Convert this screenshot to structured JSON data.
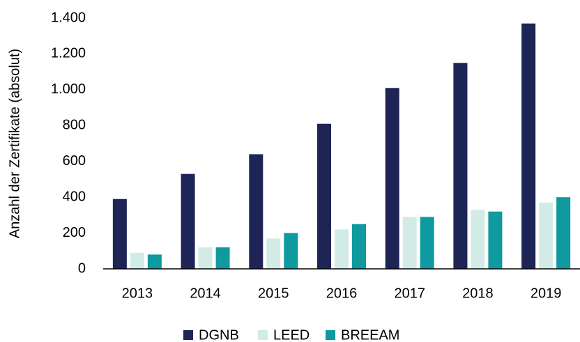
{
  "chart_data": {
    "type": "bar",
    "y_label": "Anzahl der Zertifikate (absolut)",
    "categories": [
      "2013",
      "2014",
      "2015",
      "2016",
      "2017",
      "2018",
      "2019"
    ],
    "series": [
      {
        "name": "DGNB",
        "color": "#1f2456",
        "values": [
          390,
          530,
          640,
          810,
          1010,
          1150,
          1370
        ]
      },
      {
        "name": "LEED",
        "color": "#d3ebe6",
        "values": [
          90,
          120,
          170,
          220,
          290,
          330,
          370
        ]
      },
      {
        "name": "BREEAM",
        "color": "#0e9a9e",
        "values": [
          80,
          120,
          200,
          250,
          290,
          320,
          400
        ]
      }
    ],
    "ylim": [
      0,
      1400
    ],
    "yticks": [
      0,
      200,
      400,
      600,
      800,
      {
        "value": 1000,
        "label": "1.000"
      },
      {
        "value": 1200,
        "label": "1.200"
      },
      {
        "value": 1400,
        "label": "1.400"
      }
    ],
    "grid": false,
    "legend": "bottom"
  }
}
